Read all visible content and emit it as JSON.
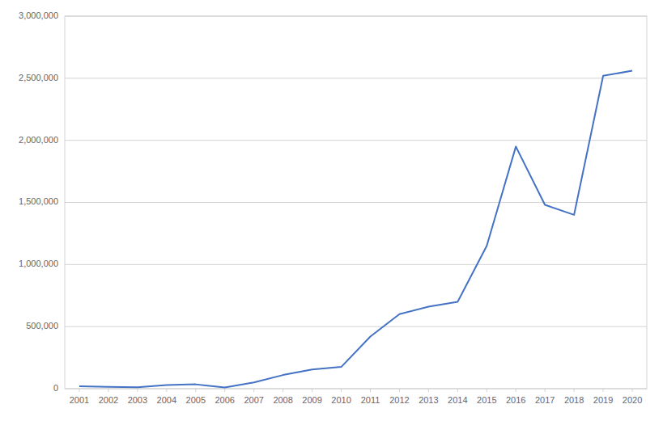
{
  "chart_data": {
    "type": "line",
    "x": [
      2001,
      2002,
      2003,
      2004,
      2005,
      2006,
      2007,
      2008,
      2009,
      2010,
      2011,
      2012,
      2013,
      2014,
      2015,
      2016,
      2017,
      2018,
      2019,
      2020
    ],
    "values": [
      20000,
      15000,
      12000,
      30000,
      35000,
      10000,
      50000,
      110000,
      155000,
      175000,
      420000,
      600000,
      660000,
      700000,
      1150000,
      1950000,
      1480000,
      1400000,
      2520000,
      2560000
    ],
    "color": "#4472C4",
    "xlim": [
      2000.5,
      2020.5
    ],
    "xticks": [
      2001,
      2002,
      2003,
      2004,
      2005,
      2006,
      2007,
      2008,
      2009,
      2010,
      2011,
      2012,
      2013,
      2014,
      2015,
      2016,
      2017,
      2018,
      2019,
      2020
    ],
    "ylim": [
      0,
      3000000
    ],
    "yticks": [
      0,
      {
        "value": 500000,
        "label": "500,000"
      },
      {
        "value": 1000000,
        "label": "1,000,000"
      },
      {
        "value": 1500000,
        "label": "1,500,000"
      },
      {
        "value": 2000000,
        "label": "2,000,000"
      },
      {
        "value": 2500000,
        "label": "2,500,000"
      },
      {
        "value": 3000000,
        "label": "3,000,000"
      }
    ],
    "grid": true
  }
}
